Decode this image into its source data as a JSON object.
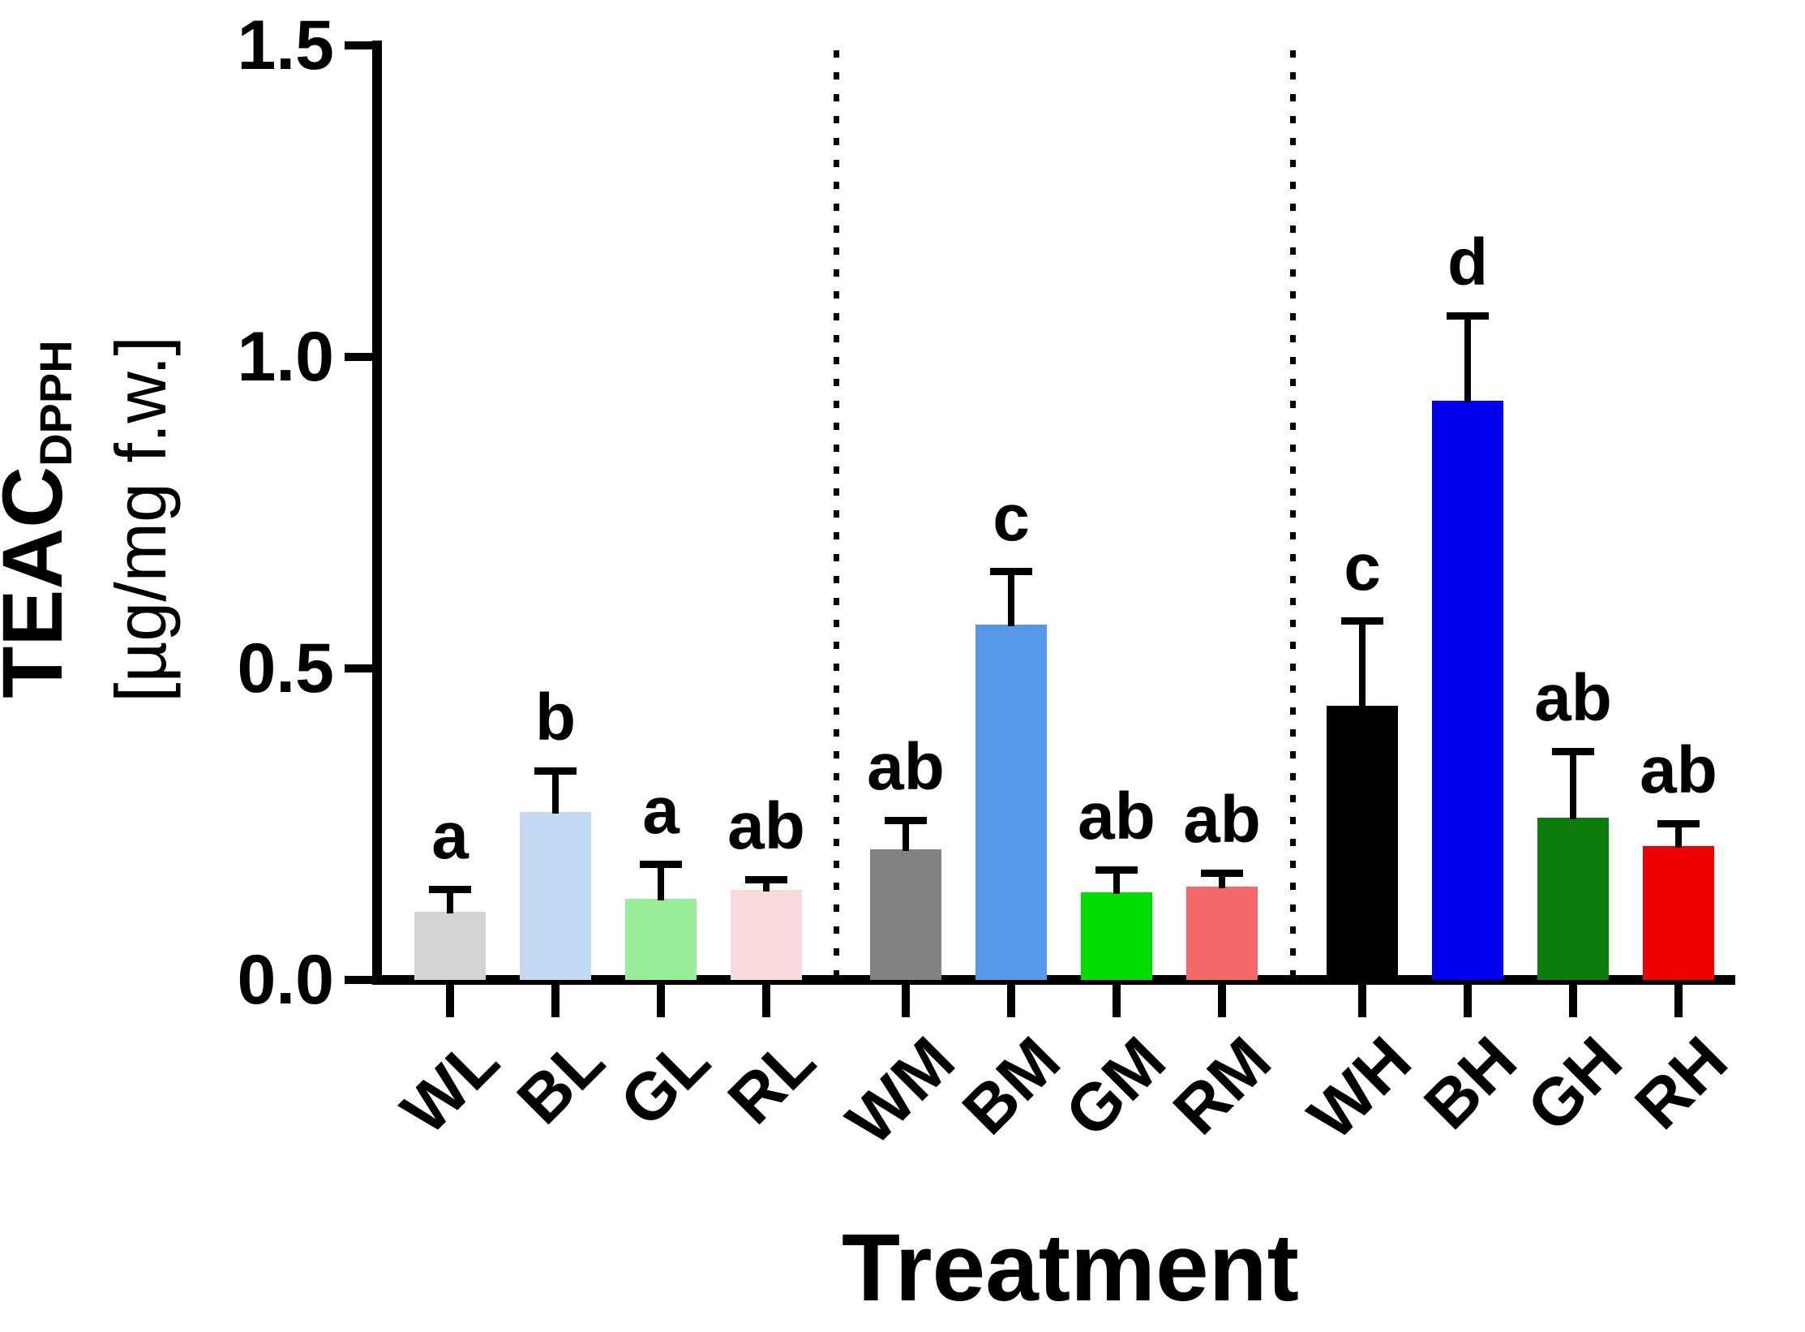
{
  "chart_data": {
    "type": "bar",
    "title": "",
    "xlabel": "Treatment",
    "ylabel": {
      "main": "TEAC",
      "subscript": "DPPH",
      "unit": "[µg/mg f.w.]"
    },
    "ylim": [
      0.0,
      1.5
    ],
    "yticks": [
      {
        "label": "0.0",
        "value": 0.0
      },
      {
        "label": "0.5",
        "value": 0.5
      },
      {
        "label": "1.0",
        "value": 1.0
      },
      {
        "label": "1.5",
        "value": 1.5
      }
    ],
    "grid": false,
    "legend_position": "none",
    "error_bars": "upper SD with caps",
    "group_separators_after": [
      "RL",
      "RM"
    ],
    "bars": [
      {
        "label": "WL",
        "value": 0.11,
        "error": 0.03,
        "sig_letter": "a",
        "color": "#d3d3d3",
        "group": 0
      },
      {
        "label": "BL",
        "value": 0.27,
        "error": 0.06,
        "sig_letter": "b",
        "color": "#c3d9f2",
        "group": 0
      },
      {
        "label": "GL",
        "value": 0.13,
        "error": 0.05,
        "sig_letter": "a",
        "color": "#98ee98",
        "group": 0
      },
      {
        "label": "RL",
        "value": 0.145,
        "error": 0.01,
        "sig_letter": "ab",
        "color": "#f8d9dc",
        "group": 0
      },
      {
        "label": "WM",
        "value": 0.21,
        "error": 0.04,
        "sig_letter": "ab",
        "color": "#828282",
        "group": 1
      },
      {
        "label": "BM",
        "value": 0.57,
        "error": 0.08,
        "sig_letter": "c",
        "color": "#5598ea",
        "group": 1
      },
      {
        "label": "GM",
        "value": 0.14,
        "error": 0.03,
        "sig_letter": "ab",
        "color": "#00dd00",
        "group": 1
      },
      {
        "label": "RM",
        "value": 0.15,
        "error": 0.015,
        "sig_letter": "ab",
        "color": "#f46868",
        "group": 1
      },
      {
        "label": "WH",
        "value": 0.44,
        "error": 0.13,
        "sig_letter": "c",
        "color": "#000000",
        "group": 2
      },
      {
        "label": "BH",
        "value": 0.93,
        "error": 0.13,
        "sig_letter": "d",
        "color": "#0000ee",
        "group": 2
      },
      {
        "label": "GH",
        "value": 0.26,
        "error": 0.1,
        "sig_letter": "ab",
        "color": "#0e7d0e",
        "group": 2
      },
      {
        "label": "RH",
        "value": 0.215,
        "error": 0.03,
        "sig_letter": "ab",
        "color": "#ee0000",
        "group": 2
      }
    ]
  }
}
